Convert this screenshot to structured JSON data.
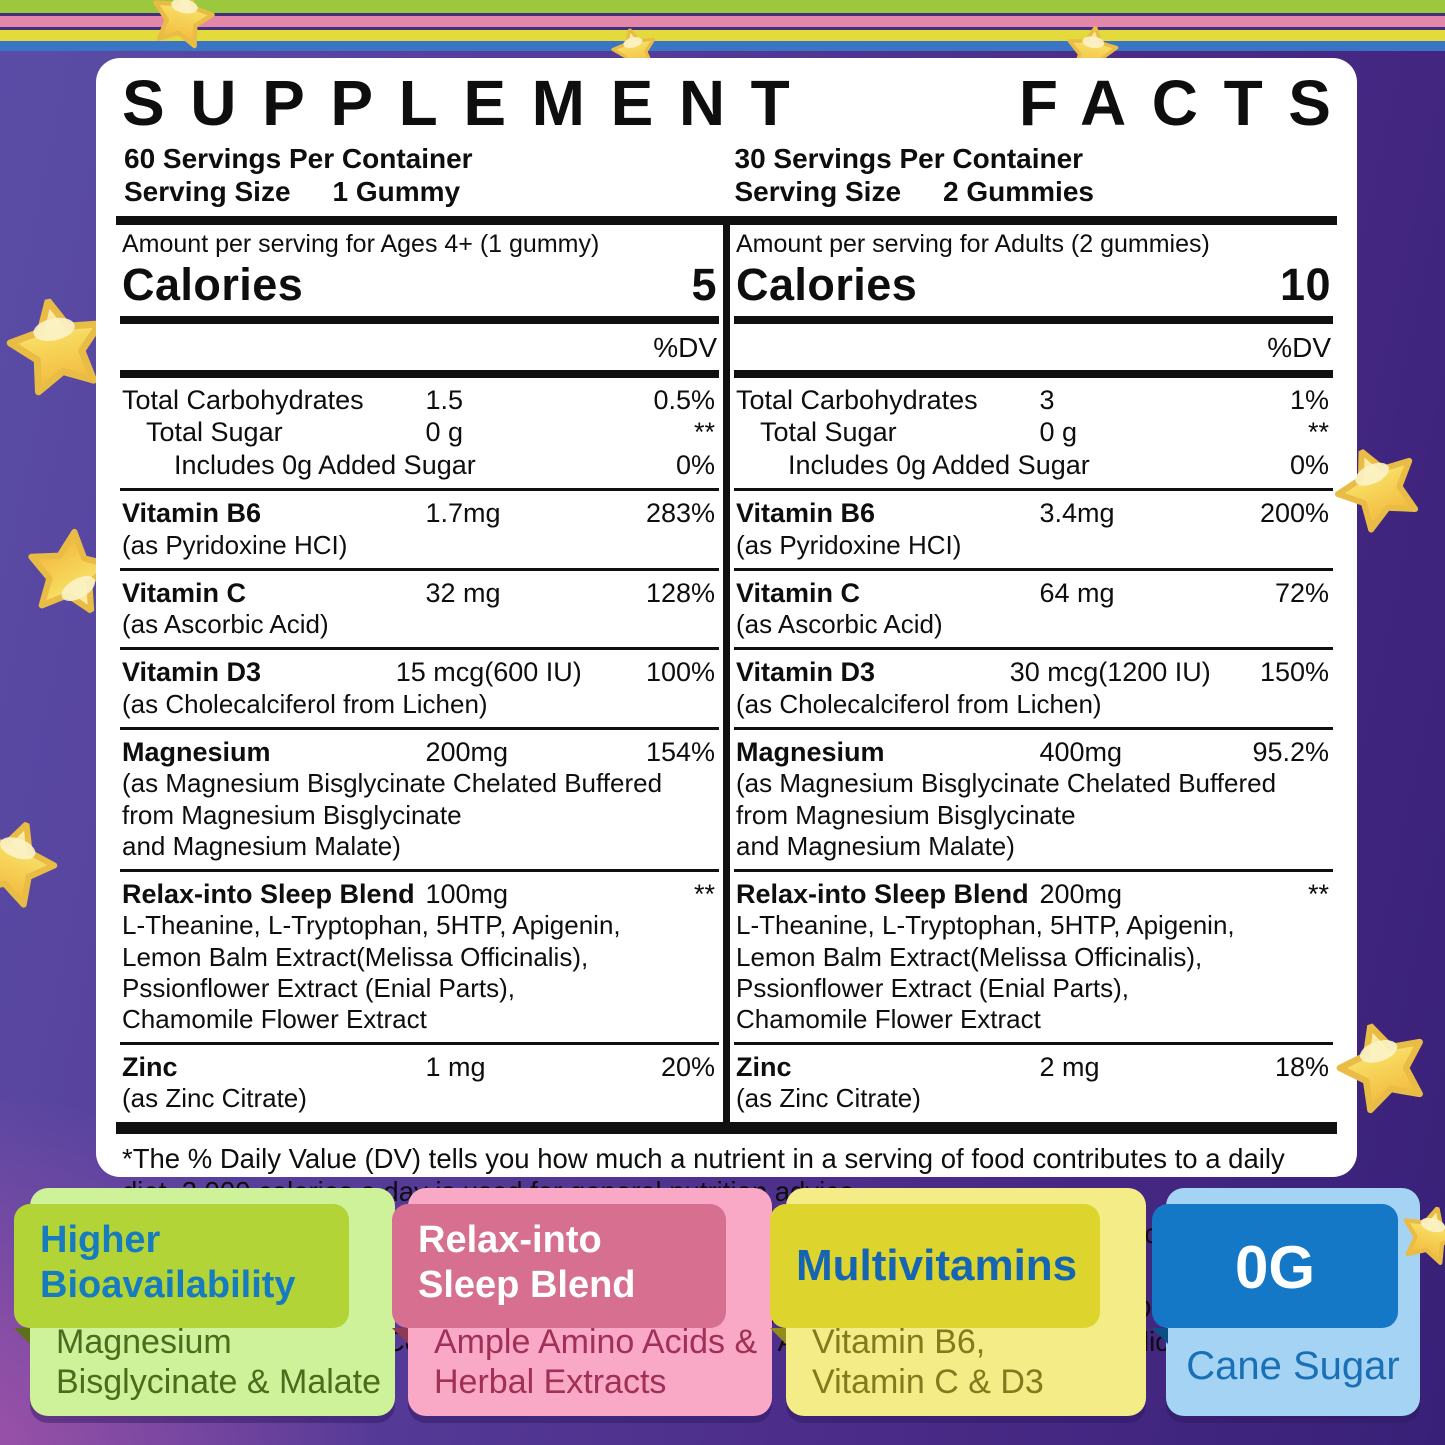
{
  "label": {
    "title_word1": "SUPPLEMENT",
    "title_word2": "FACTS",
    "columns": [
      {
        "servings": "60 Servings Per Container",
        "serving_size_label": "Serving Size",
        "serving_size_value": "1 Gummy",
        "amount_line": "Amount per serving for Ages 4+ (1 gummy)",
        "calories_label": "Calories",
        "calories_value": "5",
        "dv_header": "%DV",
        "groups": [
          {
            "lines": [
              {
                "t": "Total Carbohydrates",
                "amt": "1.5",
                "dv": "0.5%"
              },
              {
                "t": "Total Sugar",
                "ind": 1,
                "amt": "0 g",
                "dv": "**"
              },
              {
                "t": "Includes 0g Added Sugar",
                "ind": 2,
                "dv": "0%"
              }
            ]
          },
          {
            "lines": [
              {
                "t": "Vitamin B6",
                "b": 1,
                "amt": "1.7mg",
                "dv": "283%"
              }
            ],
            "subs": [
              "(as Pyridoxine HCI)"
            ]
          },
          {
            "lines": [
              {
                "t": "Vitamin C",
                "b": 1,
                "amt": "32 mg",
                "dv": "128%"
              }
            ],
            "subs": [
              "(as Ascorbic Acid)"
            ]
          },
          {
            "lines": [
              {
                "t": "Vitamin D3",
                "b": 1,
                "amt": "15 mcg(600 IU)",
                "long": 1,
                "dv": "100%"
              }
            ],
            "subs": [
              "(as Cholecalciferol from Lichen)"
            ]
          },
          {
            "lines": [
              {
                "t": "Magnesium",
                "b": 1,
                "amt": "200mg",
                "dv": "154%"
              }
            ],
            "subs": [
              "(as Magnesium Bisglycinate Chelated Buffered",
              "from Magnesium Bisglycinate",
              "and Magnesium Malate)"
            ]
          },
          {
            "lines": [
              {
                "t": "Relax-into Sleep Blend",
                "b": 1,
                "amt": "100mg",
                "dv": "**"
              }
            ],
            "subs": [
              "L-Theanine, L-Tryptophan, 5HTP, Apigenin,",
              "Lemon Balm Extract(Melissa Officinalis),",
              "Pssionflower Extract (Enial Parts),",
              "Chamomile Flower Extract"
            ]
          },
          {
            "lines": [
              {
                "t": "Zinc",
                "b": 1,
                "amt": "1 mg",
                "dv": "20%"
              }
            ],
            "subs": [
              "(as Zinc Citrate)"
            ]
          }
        ]
      },
      {
        "servings": "30 Servings Per Container",
        "serving_size_label": "Serving Size",
        "serving_size_value": "2 Gummies",
        "amount_line": "Amount per serving for Adults (2 gummies)",
        "calories_label": "Calories",
        "calories_value": "10",
        "dv_header": "%DV",
        "groups": [
          {
            "lines": [
              {
                "t": "Total Carbohydrates",
                "amt": "3",
                "dv": "1%"
              },
              {
                "t": "Total Sugar",
                "ind": 1,
                "amt": "0 g",
                "dv": "**"
              },
              {
                "t": "Includes 0g Added Sugar",
                "ind": 2,
                "dv": "0%"
              }
            ]
          },
          {
            "lines": [
              {
                "t": "Vitamin B6",
                "b": 1,
                "amt": "3.4mg",
                "dv": "200%"
              }
            ],
            "subs": [
              "(as Pyridoxine HCI)"
            ]
          },
          {
            "lines": [
              {
                "t": "Vitamin C",
                "b": 1,
                "amt": "64 mg",
                "dv": "72%"
              }
            ],
            "subs": [
              "(as Ascorbic Acid)"
            ]
          },
          {
            "lines": [
              {
                "t": "Vitamin D3",
                "b": 1,
                "amt": "30 mcg(1200 IU)",
                "long": 1,
                "dv": "150%"
              }
            ],
            "subs": [
              "(as Cholecalciferol from Lichen)"
            ]
          },
          {
            "lines": [
              {
                "t": "Magnesium",
                "b": 1,
                "amt": "400mg",
                "dv": "95.2%"
              }
            ],
            "subs": [
              "(as Magnesium Bisglycinate Chelated Buffered",
              "from Magnesium Bisglycinate",
              "and Magnesium Malate)"
            ]
          },
          {
            "lines": [
              {
                "t": "Relax-into Sleep Blend",
                "b": 1,
                "amt": "200mg",
                "dv": "**"
              }
            ],
            "subs": [
              "L-Theanine, L-Tryptophan, 5HTP, Apigenin,",
              "Lemon Balm Extract(Melissa Officinalis),",
              "Pssionflower Extract (Enial Parts),",
              "Chamomile Flower Extract"
            ]
          },
          {
            "lines": [
              {
                "t": "Zinc",
                "b": 1,
                "amt": "2 mg",
                "dv": "18%"
              }
            ],
            "subs": [
              "(as Zinc Citrate)"
            ]
          }
        ]
      }
    ],
    "footnote": "*The % Daily Value (DV) tells you how much a nutrient in a serving of food contributes to a daily diet. 2,000 calories a day is used for general nutrition advice.",
    "other_ingredients_label": "OTHER INGREDIENTS:",
    "other_ingredients_text": " Stevia Extract (Stevioside), Lo Han Guo (Monk Fruit) Extract, Pectin, Natural Strawberry Flavor, Citric Acid, Sodium Citrate, Coconut 0il, Carnauba Wax.",
    "does_not_contain_label": "Does NOT Contain:",
    "does_not_contain_text": " Yeast, Wheat, Eggs, Gluten, Soy, Gelatin, Peanuts, Shellfish, Dairy, Artificial Sweeteners, Artificial Colors, Artificial Flavors, Agave, Artificial Preservatives and Salicylates."
  },
  "cards": [
    {
      "name": "higher-bioavailability",
      "header_lines": [
        "Higher",
        "Bioavailability"
      ],
      "body_lines": [
        "Magnesium",
        "Bisglycinate & Malate"
      ],
      "card_bg": "#cdf29a",
      "header_bg": "#b2d437",
      "header_color": "#177bc0",
      "body_color": "#4c6b1d",
      "shadow": "#5f6e1a"
    },
    {
      "name": "relax-into-sleep-blend",
      "header_lines": [
        "Relax-into",
        "Sleep Blend"
      ],
      "body_lines": [
        "Ample Amino Acids &",
        "Herbal Extracts"
      ],
      "card_bg": "#f9a8c6",
      "header_bg": "#d76f90",
      "header_color": "#ffffff",
      "body_color": "#a03054",
      "shadow": "#8e3a56"
    },
    {
      "name": "multivitamins",
      "header_lines": [
        "Multivitamins"
      ],
      "single_header": true,
      "body_lines": [
        "Vitamin B6,",
        "Vitamin C & D3"
      ],
      "card_bg": "#f4ec86",
      "header_bg": "#ddd52e",
      "header_color": "#1565b2",
      "body_color": "#827b1e",
      "shadow": "#938b1c"
    },
    {
      "name": "0g-cane-sugar",
      "header_lines": [
        "0G"
      ],
      "center_header": true,
      "center_body": true,
      "body_lines": [
        "Cane Sugar"
      ],
      "card_bg": "#a5d3f4",
      "header_bg": "#1478c6",
      "header_color": "#ffffff",
      "body_color": "#1a70b6",
      "shadow": "#0c4f85"
    },
    {
      "icon": "gummy-star-icon"
    }
  ],
  "decor": {
    "stripe_colors": [
      "#9cc83e",
      "#43307c",
      "#e287a9",
      "#43307c",
      "#e5da3b",
      "#3a74c4"
    ],
    "background_purple": "#4c2c89",
    "background_magenta": "#de5db0",
    "star_fill_top": "#fdf5cd",
    "star_fill_bottom": "#f2b93e"
  }
}
